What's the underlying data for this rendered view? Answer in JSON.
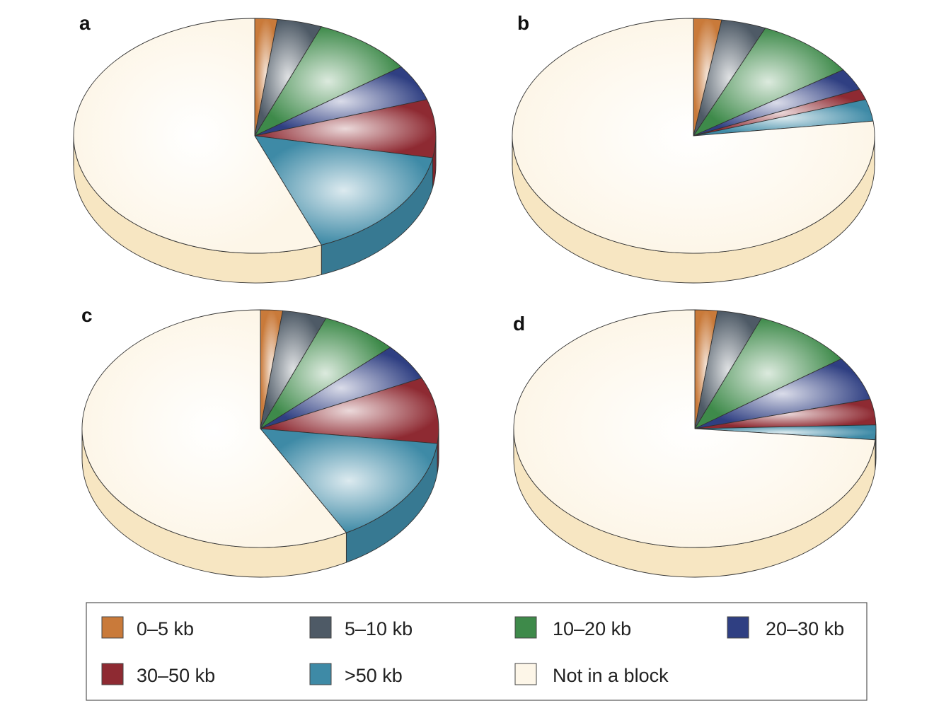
{
  "chart_data": [
    {
      "type": "pie",
      "panel_label": "a",
      "categories": [
        "0–5 kb",
        "5–10 kb",
        "10–20 kb",
        "20–30 kb",
        "30–50 kb",
        ">50 kb",
        "Not in a block"
      ],
      "values": [
        2,
        4,
        9,
        5,
        8,
        16,
        56
      ]
    },
    {
      "type": "pie",
      "panel_label": "b",
      "categories": [
        "0–5 kb",
        "5–10 kb",
        "10–20 kb",
        "20–30 kb",
        "30–50 kb",
        ">50 kb",
        "Not in a block"
      ],
      "values": [
        2.5,
        4,
        9,
        3,
        1.5,
        3,
        77
      ]
    },
    {
      "type": "pie",
      "panel_label": "c",
      "categories": [
        "0–5 kb",
        "5–10 kb",
        "10–20 kb",
        "20–30 kb",
        "30–50 kb",
        ">50 kb",
        "Not in a block"
      ],
      "values": [
        2,
        4,
        7,
        5,
        9,
        15,
        58
      ]
    },
    {
      "type": "pie",
      "panel_label": "d",
      "categories": [
        "0–5 kb",
        "5–10 kb",
        "10–20 kb",
        "20–30 kb",
        "30–50 kb",
        ">50 kb",
        "Not in a block"
      ],
      "values": [
        2,
        4,
        9,
        6,
        3.5,
        2,
        73.5
      ]
    }
  ],
  "legend": {
    "position": "bottom",
    "entries": [
      {
        "label": "0–5 kb",
        "color": "#c97a3a"
      },
      {
        "label": "5–10 kb",
        "color": "#4e5a66"
      },
      {
        "label": "10–20 kb",
        "color": "#3e8a4a"
      },
      {
        "label": "20–30 kb",
        "color": "#2f3f82"
      },
      {
        "label": "30–50 kb",
        "color": "#8e2a32"
      },
      {
        "label": ">50 kb",
        "color": "#3e8aa6"
      },
      {
        "label": "Not in a block",
        "color": "#fdf6e8"
      }
    ]
  }
}
